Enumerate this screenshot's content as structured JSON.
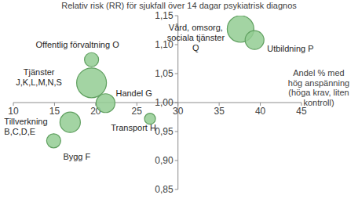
{
  "chart_data": {
    "type": "bubble",
    "title": "Relativ risk (RR) för sjukfall över 14 dagar psykiatrisk diagnos",
    "x_label": "Andel % med\nhög anspänning\n(höga krav, liten\nkontroll)",
    "labels": [
      "Offentlig förvaltning O",
      "Vård, omsorg,\nsociala tjänster\nQ",
      "Utbildning P",
      "Tjänster\nJ,K,L,M,N,S",
      "Handel G",
      "Transport H",
      "Tillverkning\nB,C,D,E",
      "Bygg F"
    ],
    "x": [
      19.5,
      37.6,
      39.3,
      19.5,
      21.2,
      26.6,
      16.9,
      14.9
    ],
    "y": [
      1.074,
      1.127,
      1.108,
      1.034,
      0.999,
      0.972,
      0.966,
      0.934
    ],
    "sizes": [
      81,
      289,
      144,
      361,
      144,
      49,
      169,
      81
    ],
    "color": "#93cc93",
    "xlim": [
      10,
      45
    ],
    "ylim": [
      0.85,
      1.15
    ],
    "xticks": [
      10,
      15,
      20,
      25,
      30,
      35,
      40,
      45
    ],
    "yticks": [
      {
        "value": 0.85,
        "label": "0,85"
      },
      {
        "value": 0.9,
        "label": "0,90"
      },
      {
        "value": 0.95,
        "label": "0,95"
      },
      {
        "value": 1.0,
        "label": "1,00"
      },
      {
        "value": 1.05,
        "label": "1,05"
      },
      {
        "value": 1.1,
        "label": "1,10"
      },
      {
        "value": 1.15,
        "label": "1,15"
      }
    ]
  }
}
